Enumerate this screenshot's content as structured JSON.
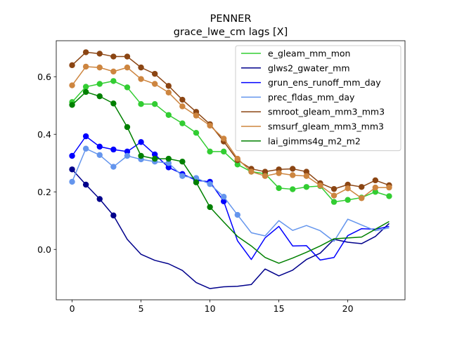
{
  "chart_data": {
    "type": "line",
    "title": "PENNER",
    "subtitle": "grace_lwe_cm lags [X]",
    "xlabel": "",
    "ylabel": "",
    "xlim": [
      -1.15,
      24.15
    ],
    "ylim": [
      -0.175,
      0.725
    ],
    "xticks": [
      0,
      5,
      10,
      15,
      20
    ],
    "xtick_labels": [
      "0",
      "5",
      "10",
      "15",
      "20"
    ],
    "yticks": [
      0.0,
      0.2,
      0.4,
      0.6
    ],
    "ytick_labels": [
      "0.0",
      "0.2",
      "0.4",
      "0.6"
    ],
    "grid": false,
    "legend_position": "upper-right",
    "series": [
      {
        "name": "e_gleam_mm_mon",
        "color": "#32cd32",
        "values": [
          0.512,
          0.565,
          0.575,
          0.585,
          0.563,
          0.505,
          0.505,
          0.467,
          0.438,
          0.405,
          0.34,
          0.34,
          0.295,
          0.27,
          0.263,
          0.213,
          0.209,
          0.217,
          0.22,
          0.165,
          0.172,
          0.18,
          0.2,
          0.185
        ],
        "markers": [
          true,
          true,
          true,
          true,
          true,
          true,
          true,
          true,
          true,
          true,
          true,
          true,
          true,
          true,
          true,
          true,
          true,
          true,
          true,
          true,
          true,
          true,
          true,
          true
        ]
      },
      {
        "name": "glws2_gwater_mm",
        "color": "#00008b",
        "values": [
          0.278,
          0.225,
          0.175,
          0.118,
          0.035,
          -0.017,
          -0.038,
          -0.05,
          -0.073,
          -0.115,
          -0.136,
          -0.13,
          -0.128,
          -0.122,
          -0.068,
          -0.092,
          -0.072,
          -0.035,
          -0.013,
          0.035,
          0.025,
          0.02,
          0.045,
          0.09
        ],
        "markers": [
          true,
          true,
          true,
          true,
          false,
          false,
          false,
          false,
          false,
          false,
          false,
          false,
          false,
          false,
          false,
          false,
          false,
          false,
          false,
          false,
          false,
          false,
          false,
          false
        ]
      },
      {
        "name": "grun_ens_runoff_mm_day",
        "color": "#0000ff",
        "values": [
          0.325,
          0.393,
          0.357,
          0.347,
          0.34,
          0.373,
          0.33,
          0.285,
          0.262,
          0.24,
          0.235,
          0.167,
          0.03,
          -0.035,
          0.04,
          0.08,
          0.012,
          0.013,
          -0.037,
          -0.028,
          0.048,
          0.072,
          0.07,
          0.08
        ],
        "markers": [
          true,
          true,
          true,
          true,
          true,
          true,
          true,
          true,
          true,
          true,
          true,
          true,
          false,
          false,
          false,
          false,
          false,
          false,
          false,
          false,
          false,
          false,
          false,
          false
        ]
      },
      {
        "name": "prec_fldas_mm_day",
        "color": "#6495ed",
        "values": [
          0.235,
          0.35,
          0.328,
          0.287,
          0.325,
          0.313,
          0.305,
          0.3,
          0.255,
          0.248,
          0.227,
          0.183,
          0.12,
          0.058,
          0.047,
          0.1,
          0.066,
          0.083,
          0.065,
          0.028,
          0.105,
          0.085,
          0.065,
          0.075
        ],
        "markers": [
          true,
          true,
          true,
          true,
          true,
          true,
          true,
          true,
          true,
          true,
          true,
          true,
          true,
          false,
          false,
          false,
          false,
          false,
          false,
          false,
          false,
          false,
          false,
          false
        ]
      },
      {
        "name": "smroot_gleam_mm3_mm3",
        "color": "#8b4513",
        "values": [
          0.64,
          0.685,
          0.68,
          0.67,
          0.67,
          0.632,
          0.61,
          0.568,
          0.52,
          0.478,
          0.435,
          0.375,
          0.31,
          0.28,
          0.27,
          0.278,
          0.28,
          0.27,
          0.23,
          0.21,
          0.225,
          0.217,
          0.24,
          0.223
        ],
        "markers": [
          true,
          true,
          true,
          true,
          true,
          true,
          true,
          true,
          true,
          true,
          true,
          true,
          true,
          true,
          true,
          true,
          true,
          true,
          true,
          true,
          true,
          true,
          true,
          true
        ]
      },
      {
        "name": "smsurf_gleam_mm3_mm3",
        "color": "#cd853f",
        "values": [
          0.57,
          0.635,
          0.632,
          0.618,
          0.632,
          0.592,
          0.575,
          0.545,
          0.497,
          0.465,
          0.43,
          0.385,
          0.315,
          0.27,
          0.255,
          0.265,
          0.258,
          0.255,
          0.222,
          0.187,
          0.212,
          0.178,
          0.215,
          0.215
        ],
        "markers": [
          true,
          true,
          true,
          true,
          true,
          true,
          true,
          true,
          true,
          true,
          true,
          true,
          true,
          true,
          true,
          true,
          true,
          true,
          true,
          true,
          true,
          true,
          true,
          true
        ]
      },
      {
        "name": "lai_gimms4g_m2_m2",
        "color": "#008000",
        "values": [
          0.502,
          0.547,
          0.532,
          0.507,
          0.425,
          0.325,
          0.315,
          0.315,
          0.305,
          0.233,
          0.147,
          0.095,
          0.045,
          0.012,
          -0.028,
          -0.048,
          -0.03,
          -0.01,
          0.012,
          0.037,
          0.04,
          0.043,
          0.07,
          0.097
        ],
        "markers": [
          true,
          true,
          true,
          true,
          true,
          true,
          true,
          true,
          true,
          true,
          true,
          false,
          false,
          false,
          false,
          false,
          false,
          false,
          false,
          false,
          false,
          false,
          false,
          false
        ]
      }
    ]
  }
}
